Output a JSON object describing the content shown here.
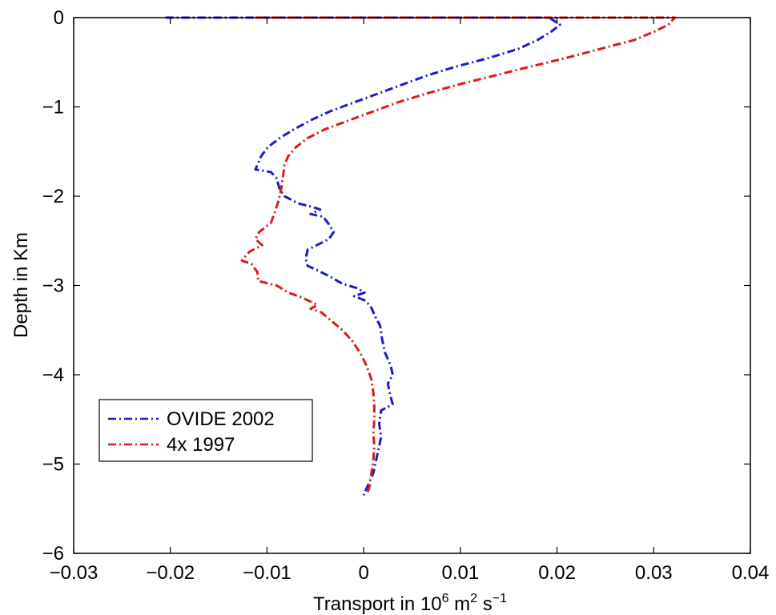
{
  "chart_data": {
    "type": "line",
    "xlabel_parts": {
      "base": "Transport in 10",
      "exp1": "6",
      "mid": " m",
      "exp2": "2",
      "tail": " s",
      "exp3": "−1"
    },
    "ylabel": "Depth in Km",
    "xlim": [
      -0.03,
      0.04
    ],
    "ylim": [
      -6,
      0
    ],
    "xticks": [
      -0.03,
      -0.02,
      -0.01,
      0,
      0.01,
      0.02,
      0.03,
      0.04
    ],
    "xtick_labels": [
      "−0.03",
      "−0.02",
      "−0.01",
      "0",
      "0.01",
      "0.02",
      "0.03",
      "0.04"
    ],
    "yticks": [
      -6,
      -5,
      -4,
      -3,
      -2,
      -1,
      0
    ],
    "ytick_labels": [
      "−6",
      "−5",
      "−4",
      "−3",
      "−2",
      "−1",
      "0"
    ],
    "grid": false,
    "legend_position": "bottom-left",
    "series": [
      {
        "name": "OVIDE 2002",
        "color": "#1a1acc",
        "style": "dash-dot",
        "points": [
          [
            -0.0205,
            0.0
          ],
          [
            0.0192,
            0.0
          ],
          [
            0.0203,
            -0.08
          ],
          [
            0.0195,
            -0.15
          ],
          [
            0.018,
            -0.25
          ],
          [
            0.016,
            -0.35
          ],
          [
            0.013,
            -0.45
          ],
          [
            0.0095,
            -0.55
          ],
          [
            0.0065,
            -0.65
          ],
          [
            0.004,
            -0.75
          ],
          [
            0.0015,
            -0.85
          ],
          [
            -0.001,
            -0.95
          ],
          [
            -0.0035,
            -1.05
          ],
          [
            -0.0055,
            -1.15
          ],
          [
            -0.0072,
            -1.25
          ],
          [
            -0.0087,
            -1.35
          ],
          [
            -0.0099,
            -1.45
          ],
          [
            -0.0106,
            -1.55
          ],
          [
            -0.011,
            -1.65
          ],
          [
            -0.0112,
            -1.7
          ],
          [
            -0.0096,
            -1.73
          ],
          [
            -0.009,
            -1.8
          ],
          [
            -0.0087,
            -1.92
          ],
          [
            -0.0082,
            -2.0
          ],
          [
            -0.0068,
            -2.08
          ],
          [
            -0.0053,
            -2.12
          ],
          [
            -0.0045,
            -2.15
          ],
          [
            -0.0055,
            -2.2
          ],
          [
            -0.0042,
            -2.23
          ],
          [
            -0.0037,
            -2.3
          ],
          [
            -0.0031,
            -2.4
          ],
          [
            -0.0036,
            -2.48
          ],
          [
            -0.0045,
            -2.53
          ],
          [
            -0.0058,
            -2.6
          ],
          [
            -0.006,
            -2.7
          ],
          [
            -0.0058,
            -2.78
          ],
          [
            -0.0048,
            -2.83
          ],
          [
            -0.0035,
            -2.9
          ],
          [
            -0.0022,
            -2.98
          ],
          [
            -0.0007,
            -3.03
          ],
          [
            0.0001,
            -3.08
          ],
          [
            -0.001,
            -3.12
          ],
          [
            0.0002,
            -3.17
          ],
          [
            0.0008,
            -3.25
          ],
          [
            0.0012,
            -3.35
          ],
          [
            0.0017,
            -3.45
          ],
          [
            0.0019,
            -3.6
          ],
          [
            0.0022,
            -3.75
          ],
          [
            0.0028,
            -3.9
          ],
          [
            0.003,
            -4.0
          ],
          [
            0.0025,
            -4.1
          ],
          [
            0.0028,
            -4.25
          ],
          [
            0.003,
            -4.33
          ],
          [
            0.0018,
            -4.4
          ],
          [
            0.0016,
            -4.55
          ],
          [
            0.0018,
            -4.7
          ],
          [
            0.0015,
            -4.85
          ],
          [
            0.0012,
            -5.0
          ],
          [
            0.001,
            -5.1
          ],
          [
            0.0006,
            -5.2
          ],
          [
            0.0002,
            -5.3
          ],
          [
            0.0,
            -5.35
          ]
        ]
      },
      {
        "name": "4x 1997",
        "color": "#dd1a1a",
        "style": "dash-dot",
        "points": [
          [
            -0.0112,
            0.0
          ],
          [
            0.0322,
            0.0
          ],
          [
            0.0315,
            -0.08
          ],
          [
            0.0302,
            -0.15
          ],
          [
            0.028,
            -0.25
          ],
          [
            0.0245,
            -0.35
          ],
          [
            0.021,
            -0.45
          ],
          [
            0.0172,
            -0.55
          ],
          [
            0.0135,
            -0.65
          ],
          [
            0.0098,
            -0.75
          ],
          [
            0.0065,
            -0.85
          ],
          [
            0.0035,
            -0.95
          ],
          [
            0.001,
            -1.05
          ],
          [
            -0.0015,
            -1.15
          ],
          [
            -0.004,
            -1.25
          ],
          [
            -0.0058,
            -1.35
          ],
          [
            -0.007,
            -1.45
          ],
          [
            -0.0078,
            -1.55
          ],
          [
            -0.0082,
            -1.65
          ],
          [
            -0.0083,
            -1.75
          ],
          [
            -0.0085,
            -1.9
          ],
          [
            -0.0088,
            -2.05
          ],
          [
            -0.0092,
            -2.18
          ],
          [
            -0.0096,
            -2.3
          ],
          [
            -0.0108,
            -2.4
          ],
          [
            -0.0112,
            -2.48
          ],
          [
            -0.0105,
            -2.55
          ],
          [
            -0.0118,
            -2.62
          ],
          [
            -0.0126,
            -2.72
          ],
          [
            -0.0116,
            -2.76
          ],
          [
            -0.011,
            -2.85
          ],
          [
            -0.0109,
            -2.95
          ],
          [
            -0.009,
            -3.0
          ],
          [
            -0.0078,
            -3.08
          ],
          [
            -0.0065,
            -3.13
          ],
          [
            -0.0055,
            -3.18
          ],
          [
            -0.0048,
            -3.22
          ],
          [
            -0.0055,
            -3.26
          ],
          [
            -0.0044,
            -3.3
          ],
          [
            -0.0033,
            -3.4
          ],
          [
            -0.0022,
            -3.5
          ],
          [
            -0.0012,
            -3.62
          ],
          [
            -0.0004,
            -3.75
          ],
          [
            0.0003,
            -3.9
          ],
          [
            0.0008,
            -4.05
          ],
          [
            0.001,
            -4.2
          ],
          [
            0.0011,
            -4.35
          ],
          [
            0.0011,
            -4.5
          ],
          [
            0.001,
            -4.65
          ],
          [
            0.0011,
            -4.8
          ],
          [
            0.001,
            -4.95
          ],
          [
            0.0008,
            -5.1
          ],
          [
            0.0006,
            -5.25
          ],
          [
            0.0004,
            -5.32
          ]
        ]
      }
    ]
  }
}
